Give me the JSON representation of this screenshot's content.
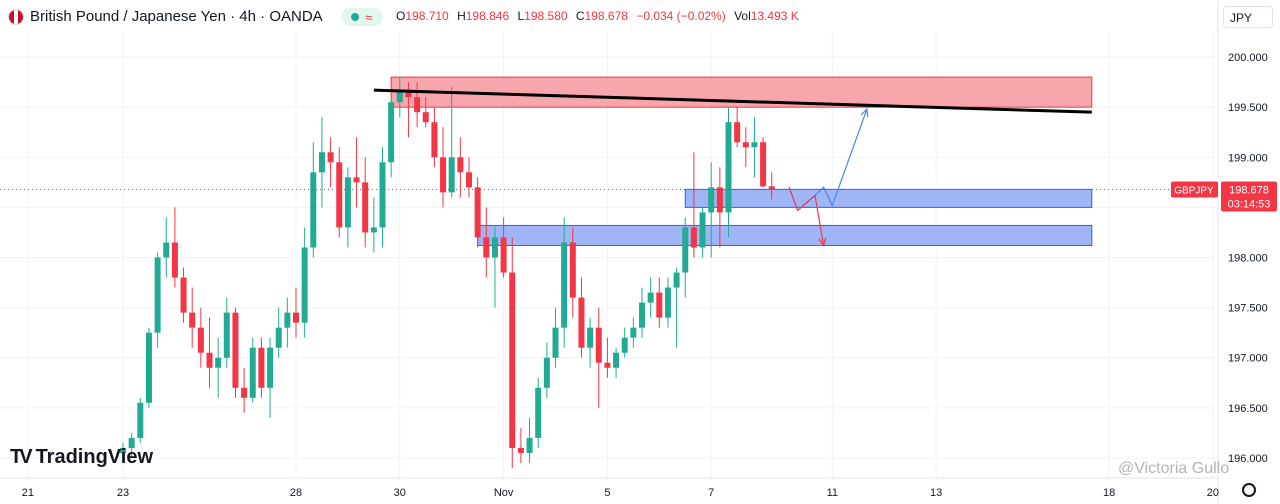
{
  "header": {
    "title": "British Pound / Japanese Yen · 4h · OANDA",
    "ohlc": [
      {
        "k": "O",
        "v": "198.710"
      },
      {
        "k": "H",
        "v": "198.846"
      },
      {
        "k": "L",
        "v": "198.580"
      },
      {
        "k": "C",
        "v": "198.678"
      }
    ],
    "change": "−0.034 (−0.02%)",
    "vol_label": "Vol",
    "vol_value": "13.493 K",
    "currency": "JPY",
    "pill_icon": "wave-icon"
  },
  "price_tag": {
    "symbol": "GBPJPY",
    "price": "198.678",
    "countdown": "03:14:53"
  },
  "brand": {
    "logo_text": "TradingView",
    "logo_mark": "TV"
  },
  "watermark": "@Victoria Gullo",
  "colors": {
    "up": "#22ab94",
    "down": "#f23645",
    "resistance": "#f7a1a8",
    "support": "#8fa8f5"
  },
  "chart_data": {
    "type": "candlestick",
    "ylim": [
      195.8,
      200.25
    ],
    "y_ticks": [
      "196.000",
      "196.500",
      "197.000",
      "197.500",
      "198.000",
      "198.500",
      "199.000",
      "199.500",
      "200.000"
    ],
    "x_ticks": [
      {
        "label": "21",
        "i": -11
      },
      {
        "label": "23",
        "i": 0
      },
      {
        "label": "28",
        "i": 20
      },
      {
        "label": "30",
        "i": 32
      },
      {
        "label": "Nov",
        "i": 44
      },
      {
        "label": "5",
        "i": 56
      },
      {
        "label": "7",
        "i": 68
      },
      {
        "label": "11",
        "i": 82
      },
      {
        "label": "13",
        "i": 94
      },
      {
        "label": "18",
        "i": 114
      },
      {
        "label": "20",
        "i": 126
      }
    ],
    "candles": [
      [
        196.05,
        196.15,
        195.95,
        196.1
      ],
      [
        196.1,
        196.25,
        196.0,
        196.2
      ],
      [
        196.2,
        196.6,
        196.15,
        196.55
      ],
      [
        196.55,
        197.3,
        196.5,
        197.25
      ],
      [
        197.25,
        198.05,
        197.1,
        198.0
      ],
      [
        198.0,
        198.4,
        197.8,
        198.15
      ],
      [
        198.15,
        198.5,
        197.7,
        197.8
      ],
      [
        197.8,
        197.9,
        197.35,
        197.45
      ],
      [
        197.45,
        197.7,
        197.1,
        197.3
      ],
      [
        197.3,
        197.5,
        196.9,
        197.05
      ],
      [
        197.05,
        197.4,
        196.7,
        196.9
      ],
      [
        196.9,
        197.2,
        196.6,
        197.0
      ],
      [
        197.0,
        197.6,
        196.9,
        197.45
      ],
      [
        197.45,
        197.5,
        196.6,
        196.7
      ],
      [
        196.7,
        196.9,
        196.45,
        196.6
      ],
      [
        196.6,
        197.2,
        196.55,
        197.1
      ],
      [
        197.1,
        197.2,
        196.6,
        196.7
      ],
      [
        196.7,
        197.2,
        196.4,
        197.1
      ],
      [
        197.1,
        197.5,
        197.0,
        197.3
      ],
      [
        197.3,
        197.6,
        197.1,
        197.45
      ],
      [
        197.45,
        197.7,
        197.2,
        197.35
      ],
      [
        197.35,
        198.3,
        197.2,
        198.1
      ],
      [
        198.1,
        199.15,
        198.0,
        198.85
      ],
      [
        198.85,
        199.4,
        198.5,
        199.05
      ],
      [
        199.05,
        199.2,
        198.7,
        198.95
      ],
      [
        198.95,
        199.1,
        198.2,
        198.3
      ],
      [
        198.3,
        198.9,
        198.1,
        198.8
      ],
      [
        198.8,
        199.2,
        198.5,
        198.75
      ],
      [
        198.75,
        199.0,
        198.1,
        198.25
      ],
      [
        198.25,
        198.6,
        198.05,
        198.3
      ],
      [
        198.3,
        199.1,
        198.1,
        198.95
      ],
      [
        198.95,
        199.6,
        198.8,
        199.55
      ],
      [
        199.55,
        199.8,
        199.4,
        199.65
      ],
      [
        199.65,
        199.75,
        199.2,
        199.6
      ],
      [
        199.6,
        199.75,
        199.3,
        199.45
      ],
      [
        199.45,
        199.6,
        199.3,
        199.35
      ],
      [
        199.35,
        199.5,
        198.9,
        199.0
      ],
      [
        199.0,
        199.3,
        198.5,
        198.65
      ],
      [
        198.65,
        199.7,
        198.6,
        199.0
      ],
      [
        199.0,
        199.2,
        198.6,
        198.85
      ],
      [
        198.85,
        199.0,
        198.6,
        198.7
      ],
      [
        198.7,
        198.8,
        198.1,
        198.2
      ],
      [
        198.2,
        198.5,
        197.8,
        198.0
      ],
      [
        198.0,
        198.3,
        197.5,
        198.2
      ],
      [
        198.2,
        198.4,
        197.8,
        197.85
      ],
      [
        197.85,
        198.2,
        195.9,
        196.1
      ],
      [
        196.1,
        196.3,
        195.95,
        196.05
      ],
      [
        196.05,
        196.4,
        195.95,
        196.2
      ],
      [
        196.2,
        196.8,
        196.1,
        196.7
      ],
      [
        196.7,
        197.15,
        196.6,
        197.0
      ],
      [
        197.0,
        197.5,
        196.9,
        197.3
      ],
      [
        197.3,
        198.4,
        197.1,
        198.15
      ],
      [
        198.15,
        198.3,
        197.4,
        197.6
      ],
      [
        197.6,
        197.8,
        197.0,
        197.1
      ],
      [
        197.1,
        197.4,
        196.9,
        197.3
      ],
      [
        197.3,
        197.5,
        196.5,
        196.95
      ],
      [
        196.95,
        197.2,
        196.8,
        196.9
      ],
      [
        196.9,
        197.1,
        196.8,
        197.05
      ],
      [
        197.05,
        197.3,
        197.0,
        197.2
      ],
      [
        197.2,
        197.4,
        197.1,
        197.3
      ],
      [
        197.3,
        197.7,
        197.2,
        197.55
      ],
      [
        197.55,
        197.8,
        197.4,
        197.65
      ],
      [
        197.65,
        197.8,
        197.3,
        197.4
      ],
      [
        197.4,
        197.8,
        197.3,
        197.7
      ],
      [
        197.7,
        197.9,
        197.1,
        197.85
      ],
      [
        197.85,
        198.4,
        197.6,
        198.3
      ],
      [
        198.3,
        199.05,
        198.0,
        198.1
      ],
      [
        198.1,
        198.5,
        198.0,
        198.45
      ],
      [
        198.45,
        198.95,
        198.0,
        198.7
      ],
      [
        198.7,
        198.9,
        198.1,
        198.45
      ],
      [
        198.45,
        199.5,
        198.2,
        199.35
      ],
      [
        199.35,
        199.5,
        199.1,
        199.15
      ],
      [
        199.15,
        199.3,
        198.9,
        199.1
      ],
      [
        199.1,
        199.4,
        198.8,
        199.15
      ],
      [
        199.15,
        199.2,
        198.7,
        198.71
      ],
      [
        198.71,
        198.85,
        198.58,
        198.68
      ]
    ],
    "zones": [
      {
        "name": "resistance",
        "from_i": 31,
        "to_i": 112,
        "y_low": 199.5,
        "y_high": 199.8
      },
      {
        "name": "support-upper",
        "from_i": 65,
        "to_i": 112,
        "y_low": 198.5,
        "y_high": 198.68
      },
      {
        "name": "support-lower",
        "from_i": 41,
        "to_i": 112,
        "y_low": 198.12,
        "y_high": 198.32
      }
    ],
    "trendline": {
      "from": {
        "i": 29,
        "y": 199.67
      },
      "to": {
        "i": 112,
        "y": 199.45
      }
    },
    "projections": [
      {
        "name": "bullish-path",
        "color": "#4a86e8",
        "points": [
          {
            "i": 77,
            "y": 198.7
          },
          {
            "i": 78,
            "y": 198.47
          },
          {
            "i": 80,
            "y": 198.62
          },
          {
            "i": 81,
            "y": 198.7
          },
          {
            "i": 82,
            "y": 198.52
          },
          {
            "i": 86,
            "y": 199.48
          }
        ]
      },
      {
        "name": "bearish-path",
        "color": "#f23645",
        "points": [
          {
            "i": 77,
            "y": 198.7
          },
          {
            "i": 78,
            "y": 198.47
          },
          {
            "i": 80,
            "y": 198.62
          },
          {
            "i": 81,
            "y": 198.12
          }
        ]
      }
    ],
    "last_price": 198.678
  }
}
